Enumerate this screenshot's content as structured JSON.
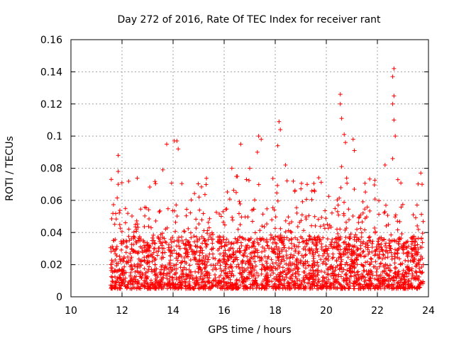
{
  "chart_data": {
    "type": "scatter",
    "title": "Day 272 of 2016, Rate Of TEC Index for receiver rant",
    "xlabel": "GPS time / hours",
    "ylabel": "ROTI / TECUs",
    "xlim": [
      10,
      24
    ],
    "ylim": [
      0,
      0.16
    ],
    "x_ticks": [
      "10",
      "12",
      "14",
      "16",
      "18",
      "20",
      "22",
      "24"
    ],
    "x_tick_values": [
      10,
      12,
      14,
      16,
      18,
      20,
      22,
      24
    ],
    "y_ticks": [
      "0",
      "0.02",
      "0.04",
      "0.06",
      "0.08",
      "0.1",
      "0.12",
      "0.14",
      "0.16"
    ],
    "y_tick_values": [
      0,
      0.02,
      0.04,
      0.06,
      0.08,
      0.1,
      0.12,
      0.14,
      0.16
    ],
    "grid": true,
    "marker": "+",
    "color": "#ff0000",
    "data_range_x": [
      11.55,
      23.8
    ],
    "baseline_band": [
      0.005,
      0.03
    ],
    "series": [
      {
        "name": "ROTI",
        "notable_points": [
          {
            "x": 11.85,
            "y": 0.088
          },
          {
            "x": 11.85,
            "y": 0.078
          },
          {
            "x": 11.85,
            "y": 0.07
          },
          {
            "x": 13.75,
            "y": 0.095
          },
          {
            "x": 14.05,
            "y": 0.097
          },
          {
            "x": 14.15,
            "y": 0.097
          },
          {
            "x": 14.2,
            "y": 0.092
          },
          {
            "x": 13.6,
            "y": 0.079
          },
          {
            "x": 16.65,
            "y": 0.095
          },
          {
            "x": 16.3,
            "y": 0.08
          },
          {
            "x": 17.0,
            "y": 0.08
          },
          {
            "x": 17.35,
            "y": 0.1
          },
          {
            "x": 17.45,
            "y": 0.098
          },
          {
            "x": 17.3,
            "y": 0.09
          },
          {
            "x": 18.15,
            "y": 0.109
          },
          {
            "x": 18.2,
            "y": 0.104
          },
          {
            "x": 18.1,
            "y": 0.094
          },
          {
            "x": 18.4,
            "y": 0.082
          },
          {
            "x": 20.55,
            "y": 0.126
          },
          {
            "x": 20.55,
            "y": 0.12
          },
          {
            "x": 20.6,
            "y": 0.111
          },
          {
            "x": 20.7,
            "y": 0.101
          },
          {
            "x": 20.75,
            "y": 0.096
          },
          {
            "x": 21.05,
            "y": 0.098
          },
          {
            "x": 21.1,
            "y": 0.091
          },
          {
            "x": 20.6,
            "y": 0.081
          },
          {
            "x": 22.65,
            "y": 0.142
          },
          {
            "x": 22.6,
            "y": 0.137
          },
          {
            "x": 22.65,
            "y": 0.125
          },
          {
            "x": 22.6,
            "y": 0.12
          },
          {
            "x": 22.65,
            "y": 0.11
          },
          {
            "x": 22.7,
            "y": 0.1
          },
          {
            "x": 22.6,
            "y": 0.086
          },
          {
            "x": 22.3,
            "y": 0.082
          },
          {
            "x": 23.7,
            "y": 0.077
          },
          {
            "x": 23.75,
            "y": 0.07
          }
        ]
      }
    ]
  }
}
